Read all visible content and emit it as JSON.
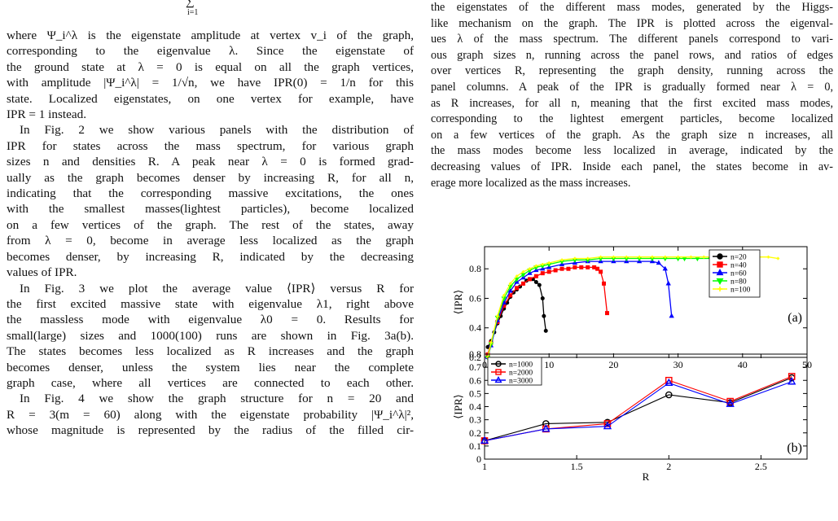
{
  "top_equation": {
    "sum_symbol": "∑",
    "sum_index": "i=1"
  },
  "left_column": {
    "lines": [
      "where Ψ_i^λ is the eigenstate amplitude at vertex v_i of the graph,",
      "corresponding to the eigenvalue λ. Since the eigenstate of",
      "the ground state at λ = 0 is equal on all the graph vertices,",
      "with amplitude |Ψ_i^λ| = 1/√n, we have IPR(0) = 1/n for this",
      "state. Localized eigenstates, on one vertex for example, have",
      "IPR = 1 instead.",
      "In Fig. 2 we show various panels with the distribution of",
      "IPR for states across the mass spectrum, for various graph",
      "sizes n and densities R. A peak near λ = 0 is formed grad-",
      "ually as the graph becomes denser by increasing R, for all n,",
      "indicating that the corresponding massive excitations, the ones",
      "with the smallest masses(lightest particles), become localized",
      "on a few vertices of the graph. The rest of the states, away",
      "from λ = 0, become in average less localized as the graph",
      "becomes denser, by increasing R, indicated by the decreasing",
      "values of IPR.",
      "In Fig. 3 we plot the average value ⟨IPR⟩ versus R for",
      "the first excited massive state with eigenvalue λ1, right above",
      "the massless mode with eigenvalue λ0 = 0. Results for",
      "small(large) sizes and 1000(100) runs are shown in Fig. 3a(b).",
      "The states becomes less localized as R increases and the graph",
      "becomes denser, unless the system lies near the complete",
      "graph case, where all vertices are connected to each other.",
      "In Fig. 4 we show the graph structure for n = 20 and",
      "R = 3(m = 60) along with the eigenstate probability |Ψ_i^λ|²,",
      "whose magnitude is represented by the radius of the filled cir-"
    ]
  },
  "right_column": {
    "lines": [
      "the eigenstates of the different mass modes, generated by the Higgs-",
      "like mechanism on the graph. The IPR is plotted across the eigenval-",
      "ues λ of the mass spectrum. The different panels correspond to vari-",
      "ous graph sizes n, running across the panel rows, and ratios of edges",
      "over vertices R, representing the graph density, running across the",
      "panel columns. A peak of the IPR is gradually formed near λ = 0,",
      "as R increases, for all n, meaning that the first excited mass modes,",
      "corresponding to the lightest emergent particles, become localized",
      "on a few vertices of the graph. As the graph size n increases, all",
      "the mass modes become less localized in average, indicated by the",
      "decreasing values of IPR. Inside each panel, the states become in av-",
      "erage more localized as the mass increases."
    ]
  },
  "chart_data": [
    {
      "type": "line",
      "panel_label": "(a)",
      "ylabel": "⟨IPR⟩",
      "xlim": [
        0,
        50
      ],
      "ylim": [
        0.2,
        0.95
      ],
      "x_ticks": [
        "0",
        "10",
        "20",
        "30",
        "40",
        "50"
      ],
      "y_ticks": [
        "0.2",
        "0.4",
        "0.6",
        "0.8"
      ],
      "legend_position": "right",
      "series": [
        {
          "name": "n=20",
          "color": "#000000",
          "marker": "circle",
          "x": [
            0.5,
            1,
            1.5,
            2,
            2.5,
            3,
            3.5,
            4,
            4.5,
            5,
            5.5,
            6,
            6.5,
            7,
            7.5,
            8,
            8.5,
            9,
            9.2,
            9.5
          ],
          "y": [
            0.27,
            0.31,
            0.37,
            0.43,
            0.48,
            0.53,
            0.57,
            0.61,
            0.64,
            0.66,
            0.68,
            0.7,
            0.72,
            0.73,
            0.73,
            0.71,
            0.69,
            0.6,
            0.48,
            0.38
          ]
        },
        {
          "name": "n=40",
          "color": "#ff0000",
          "marker": "square",
          "x": [
            0.5,
            1,
            2,
            3,
            4,
            5,
            6,
            7,
            8,
            9,
            10,
            11,
            12,
            13,
            14,
            15,
            16,
            17,
            17.5,
            18,
            18.5,
            19
          ],
          "y": [
            0.22,
            0.3,
            0.44,
            0.55,
            0.62,
            0.67,
            0.7,
            0.73,
            0.75,
            0.77,
            0.78,
            0.79,
            0.8,
            0.8,
            0.81,
            0.81,
            0.81,
            0.81,
            0.8,
            0.78,
            0.7,
            0.5
          ]
        },
        {
          "name": "n=60",
          "color": "#0000ff",
          "marker": "triangle",
          "x": [
            0.5,
            1,
            2,
            3,
            4,
            5,
            6,
            7,
            8,
            9,
            10,
            12,
            14,
            16,
            18,
            20,
            22,
            24,
            26,
            27,
            28,
            28.5,
            29
          ],
          "y": [
            0.2,
            0.28,
            0.45,
            0.57,
            0.65,
            0.71,
            0.74,
            0.77,
            0.79,
            0.8,
            0.81,
            0.83,
            0.84,
            0.85,
            0.85,
            0.85,
            0.85,
            0.85,
            0.85,
            0.84,
            0.8,
            0.7,
            0.48
          ]
        },
        {
          "name": "n=80",
          "color": "#00ff00",
          "marker": "triangle-down",
          "x": [
            0.5,
            1,
            2,
            3,
            4,
            5,
            6,
            7,
            8,
            9,
            10,
            12,
            14,
            16,
            18,
            20,
            22,
            24,
            26,
            28,
            30,
            31,
            33,
            35,
            37,
            39
          ],
          "y": [
            0.2,
            0.29,
            0.47,
            0.6,
            0.68,
            0.73,
            0.76,
            0.79,
            0.81,
            0.82,
            0.83,
            0.85,
            0.86,
            0.86,
            0.87,
            0.87,
            0.87,
            0.87,
            0.87,
            0.87,
            0.87,
            0.87,
            0.87,
            0.87,
            0.87,
            0.87
          ]
        },
        {
          "name": "n=100",
          "color": "#ffff00",
          "marker": "plus",
          "x": [
            0.5,
            1,
            2,
            3,
            4,
            5,
            6,
            7,
            8,
            9,
            10,
            12,
            14,
            16,
            18,
            20,
            22,
            24,
            26,
            28,
            30,
            32,
            34,
            36,
            38,
            40,
            42,
            44,
            45.5
          ],
          "y": [
            0.2,
            0.3,
            0.48,
            0.62,
            0.7,
            0.75,
            0.78,
            0.8,
            0.82,
            0.83,
            0.84,
            0.86,
            0.87,
            0.87,
            0.88,
            0.88,
            0.88,
            0.88,
            0.88,
            0.88,
            0.88,
            0.88,
            0.88,
            0.88,
            0.88,
            0.88,
            0.88,
            0.88,
            0.87
          ]
        }
      ]
    },
    {
      "type": "line",
      "panel_label": "(b)",
      "xlabel": "R",
      "ylabel": "⟨IPR⟩",
      "xlim": [
        1,
        2.75
      ],
      "ylim": [
        0,
        0.8
      ],
      "x_ticks": [
        "1",
        "1.5",
        "2",
        "2.5"
      ],
      "y_ticks": [
        "0",
        "0.1",
        "0.2",
        "0.3",
        "0.4",
        "0.5",
        "0.6",
        "0.7",
        "0.8"
      ],
      "legend_position": "top-left",
      "series": [
        {
          "name": "n=1000",
          "color": "#000000",
          "marker": "circle",
          "x": [
            1,
            1.333,
            1.667,
            2,
            2.333,
            2.667
          ],
          "y": [
            0.14,
            0.27,
            0.28,
            0.49,
            0.43,
            0.62
          ]
        },
        {
          "name": "n=2000",
          "color": "#ff0000",
          "marker": "square",
          "x": [
            1,
            1.333,
            1.667,
            2,
            2.333,
            2.667
          ],
          "y": [
            0.14,
            0.23,
            0.27,
            0.6,
            0.44,
            0.63
          ]
        },
        {
          "name": "n=3000",
          "color": "#0000ff",
          "marker": "triangle",
          "x": [
            1,
            1.333,
            1.667,
            2,
            2.333,
            2.667
          ],
          "y": [
            0.14,
            0.23,
            0.25,
            0.58,
            0.42,
            0.59
          ]
        }
      ]
    }
  ]
}
